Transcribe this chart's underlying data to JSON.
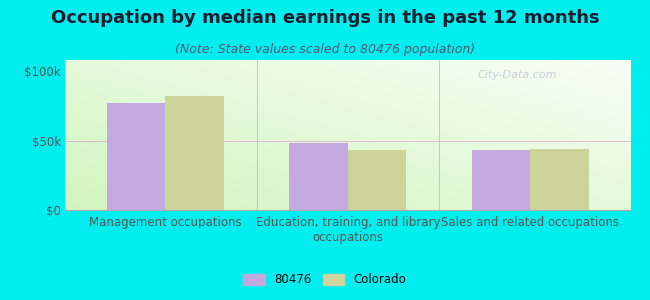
{
  "title": "Occupation by median earnings in the past 12 months",
  "subtitle": "(Note: State values scaled to 80476 population)",
  "categories": [
    "Management occupations",
    "Education, training, and library\noccupations",
    "Sales and related occupations"
  ],
  "values_80476": [
    77000,
    48000,
    43000
  ],
  "values_colorado": [
    82000,
    43000,
    44000
  ],
  "bar_color_80476": "#c4a8e0",
  "bar_color_colorado": "#cdd49a",
  "background_color": "#00eeee",
  "yticks": [
    0,
    50000,
    100000
  ],
  "ytick_labels": [
    "$0",
    "$50k",
    "$100k"
  ],
  "ylim": [
    0,
    108000
  ],
  "legend_labels": [
    "80476",
    "Colorado"
  ],
  "watermark": "City-Data.com",
  "title_fontsize": 13,
  "subtitle_fontsize": 9,
  "tick_fontsize": 8.5,
  "bar_width": 0.32
}
